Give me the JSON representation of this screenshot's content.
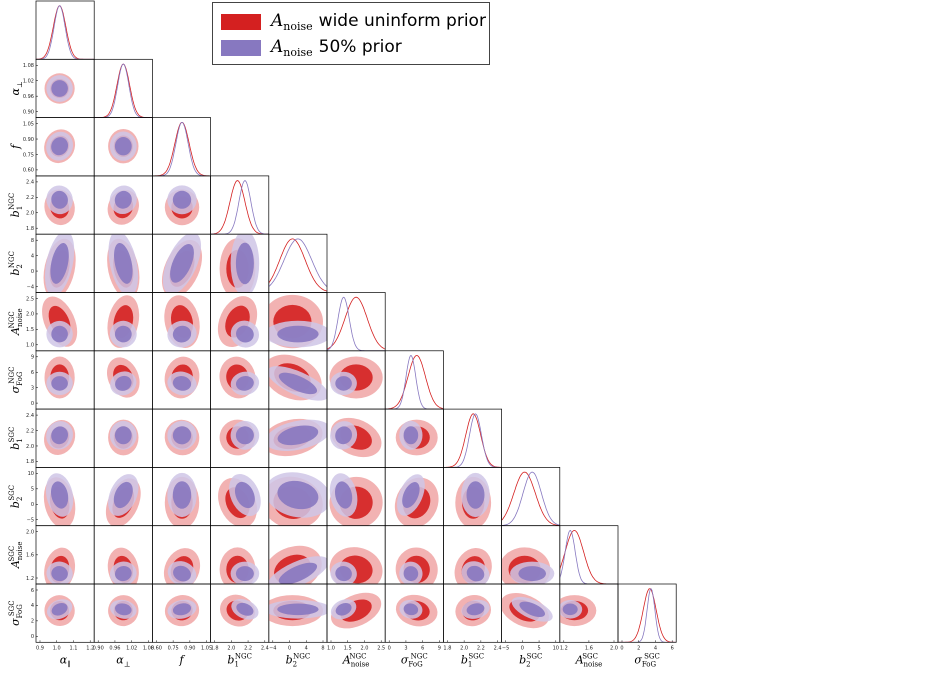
{
  "chart_data": {
    "type": "corner",
    "parameters": [
      {
        "name": "α",
        "sub": "∥",
        "sup": "",
        "ticks": [
          "0.9",
          "1.0",
          "1.1",
          "1.2"
        ],
        "range": [
          0.85,
          1.22
        ]
      },
      {
        "name": "α",
        "sub": "⊥",
        "sup": "",
        "ticks": [
          "0.90",
          "0.96",
          "1.02",
          "1.08"
        ],
        "range": [
          0.87,
          1.1
        ]
      },
      {
        "name": "f",
        "sub": "",
        "sup": "",
        "ticks": [
          "0.60",
          "0.75",
          "0.90",
          "1.05"
        ],
        "range": [
          0.55,
          1.12
        ]
      },
      {
        "name": "b",
        "sub": "1",
        "sup": "NGC",
        "ticks": [
          "1.8",
          "2.0",
          "2.2",
          "2.4"
        ],
        "range": [
          1.72,
          2.5
        ]
      },
      {
        "name": "b",
        "sub": "2",
        "sup": "NGC",
        "ticks": [
          "−4",
          "0",
          "4",
          "8"
        ],
        "range": [
          -6.5,
          9.5
        ]
      },
      {
        "name": "A",
        "sub": "noise",
        "sup": "NGC",
        "ticks": [
          "1.0",
          "1.5",
          "2.0",
          "2.5"
        ],
        "range": [
          0.7,
          2.8
        ]
      },
      {
        "name": "σ",
        "sub": "FoG",
        "sup": "NGC",
        "ticks": [
          "0",
          "3",
          "6",
          "9"
        ],
        "range": [
          -1.5,
          10.5
        ]
      },
      {
        "name": "b",
        "sub": "1",
        "sup": "SGC",
        "ticks": [
          "1.8",
          "2.0",
          "2.2",
          "2.4"
        ],
        "range": [
          1.72,
          2.5
        ]
      },
      {
        "name": "b",
        "sub": "2",
        "sup": "SGC",
        "ticks": [
          "−5",
          "0",
          "5",
          "10"
        ],
        "range": [
          -7,
          12
        ]
      },
      {
        "name": "A",
        "sub": "noise",
        "sup": "SGC",
        "ticks": [
          "1.2",
          "1.6",
          "2.0"
        ],
        "range": [
          0.95,
          2.35
        ]
      },
      {
        "name": "σ",
        "sub": "FoG",
        "sup": "SGC",
        "ticks": [
          "0",
          "2",
          "4",
          "6"
        ],
        "range": [
          -1.5,
          7.5
        ]
      }
    ],
    "series": [
      {
        "name": "wide uninform prior",
        "color": "#d42020",
        "light": "#f0a4a4"
      },
      {
        "name": "50% prior",
        "color": "#8778c0",
        "light": "#cfc6e6"
      }
    ],
    "means_wide": [
      1.0,
      0.985,
      0.84,
      2.08,
      0.0,
      1.75,
      5.0,
      2.12,
      0.5,
      1.3,
      3.4
    ],
    "sigmas_wide": [
      0.04,
      0.025,
      0.07,
      0.1,
      3.5,
      0.4,
      1.8,
      0.1,
      3.5,
      0.22,
      1.0
    ],
    "means_50": [
      1.0,
      0.985,
      0.84,
      2.18,
      1.5,
      1.3,
      3.8,
      2.15,
      3.0,
      1.2,
      3.6
    ],
    "sigmas_50": [
      0.035,
      0.022,
      0.06,
      0.08,
      3.8,
      0.2,
      1.0,
      0.08,
      3.0,
      0.12,
      0.6
    ]
  },
  "legend": {
    "entry1_sym": "A",
    "entry1_sub": "noise",
    "entry1_text": "wide uninform prior",
    "entry2_sym": "A",
    "entry2_sub": "noise",
    "entry2_text": "50% prior"
  }
}
